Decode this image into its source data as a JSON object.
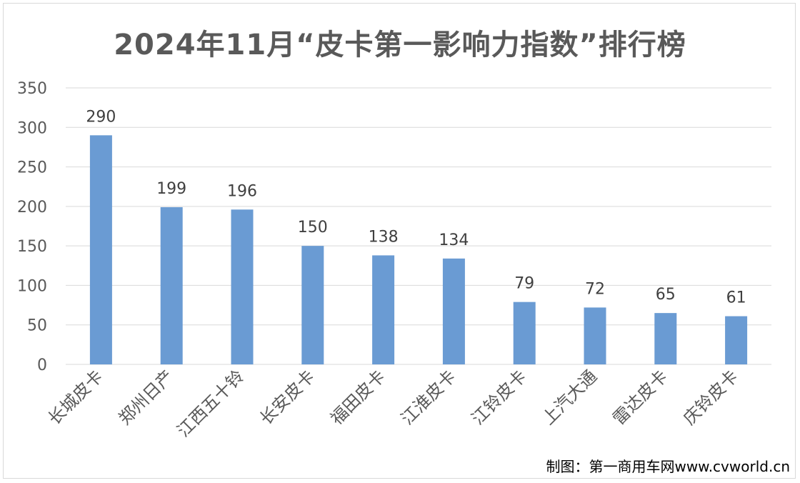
{
  "chart_data": {
    "type": "bar",
    "title": "2024年11月“皮卡第一影响力指数”排行榜",
    "categories": [
      "长城皮卡",
      "郑州日产",
      "江西五十铃",
      "长安皮卡",
      "福田皮卡",
      "江淮皮卡",
      "江铃皮卡",
      "上汽大通",
      "雷达皮卡",
      "庆铃皮卡"
    ],
    "values": [
      290,
      199,
      196,
      150,
      138,
      134,
      79,
      72,
      65,
      61
    ],
    "data_labels": [
      "290",
      "199",
      "196",
      "150",
      "138",
      "134",
      "79",
      "72",
      "65",
      "61"
    ],
    "yticks": [
      "0",
      "50",
      "100",
      "150",
      "200",
      "250",
      "300",
      "350"
    ],
    "ylim": [
      0,
      350
    ],
    "xlabel": "",
    "ylabel": "",
    "grid": true,
    "legend": "none",
    "bar_color": "#6a9bd3",
    "grid_color": "#d9d9d9",
    "text_color": "#595959"
  },
  "credit": "制图：第一商用车网www.cvworld.cn"
}
